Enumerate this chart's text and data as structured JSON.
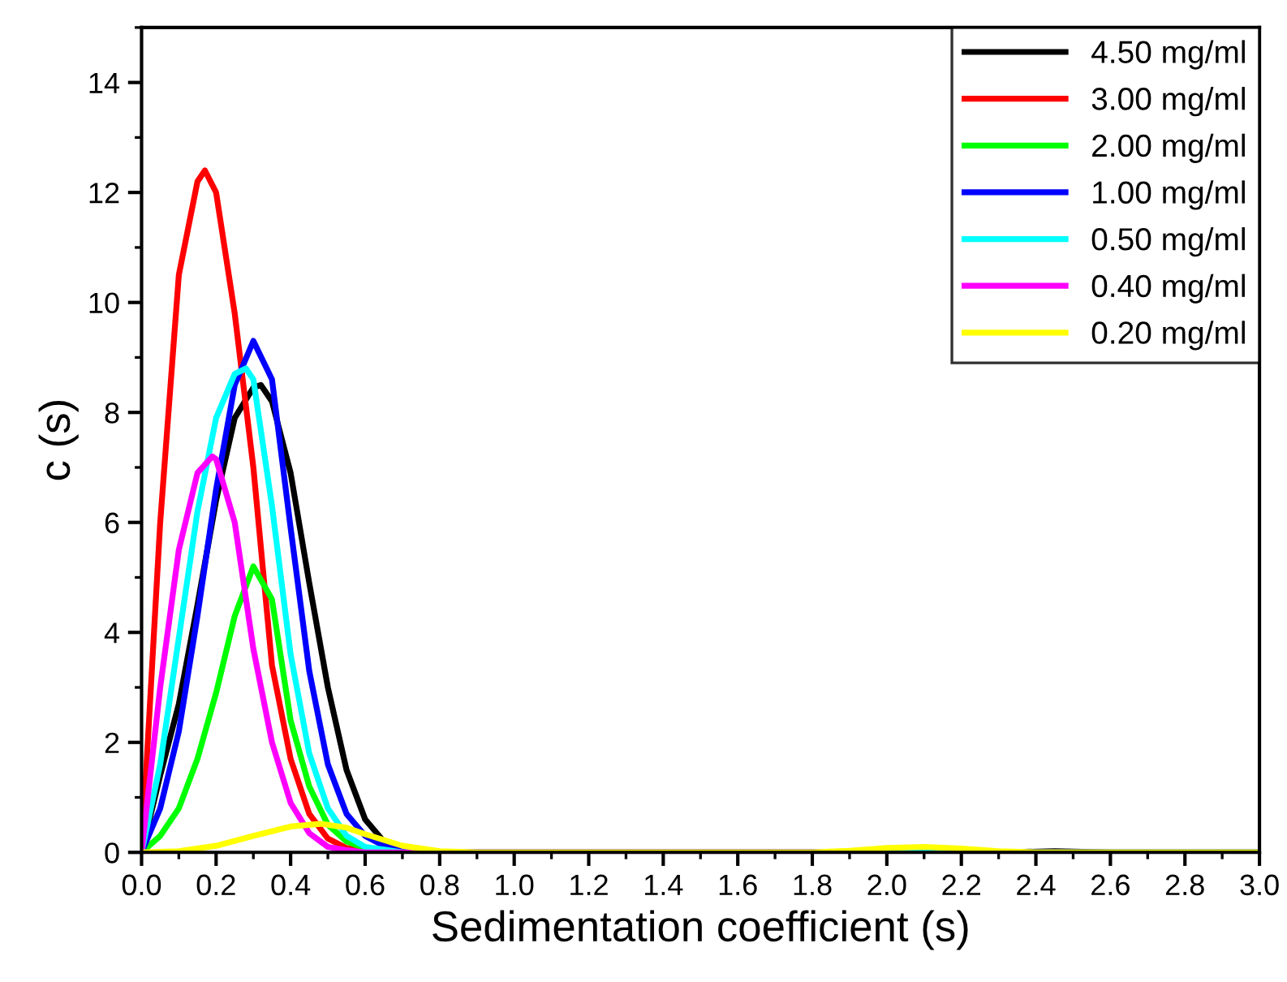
{
  "chart_data": {
    "type": "line",
    "xlabel": "Sedimentation coefficient (s)",
    "ylabel": "c (s)",
    "xlim": [
      0,
      3.0
    ],
    "ylim": [
      0,
      15
    ],
    "xticks": [
      {
        "value": 0,
        "label": "0.0"
      },
      {
        "value": 0.2,
        "label": "0.2"
      },
      {
        "value": 0.4,
        "label": "0.4"
      },
      {
        "value": 0.6,
        "label": "0.6"
      },
      {
        "value": 0.8,
        "label": "0.8"
      },
      {
        "value": 1.0,
        "label": "1.0"
      },
      {
        "value": 1.2,
        "label": "1.2"
      },
      {
        "value": 1.4,
        "label": "1.4"
      },
      {
        "value": 1.6,
        "label": "1.6"
      },
      {
        "value": 1.8,
        "label": "1.8"
      },
      {
        "value": 2.0,
        "label": "2.0"
      },
      {
        "value": 2.2,
        "label": "2.2"
      },
      {
        "value": 2.4,
        "label": "2.4"
      },
      {
        "value": 2.6,
        "label": "2.6"
      },
      {
        "value": 2.8,
        "label": "2.8"
      },
      {
        "value": 3.0,
        "label": "3.0"
      }
    ],
    "yticks": [
      0,
      2,
      4,
      6,
      8,
      10,
      12,
      14
    ],
    "grid": false,
    "legend": "top right",
    "marker": "none",
    "line_style": "solid",
    "series": [
      {
        "name": "4.50 mg/ml",
        "color": "#000000",
        "x": [
          0,
          0.05,
          0.1,
          0.15,
          0.2,
          0.25,
          0.3,
          0.32,
          0.35,
          0.4,
          0.45,
          0.5,
          0.55,
          0.6,
          0.65,
          0.7,
          0.8,
          2.3,
          2.45,
          2.6,
          3.0
        ],
        "values": [
          0,
          1.4,
          2.7,
          4.5,
          6.4,
          7.9,
          8.45,
          8.5,
          8.2,
          6.9,
          4.9,
          3.0,
          1.5,
          0.6,
          0.2,
          0.06,
          0,
          0,
          0.02,
          0,
          0
        ]
      },
      {
        "name": "3.00 mg/ml",
        "color": "#ff0000",
        "x": [
          0,
          0.05,
          0.1,
          0.15,
          0.17,
          0.2,
          0.25,
          0.3,
          0.35,
          0.4,
          0.45,
          0.5,
          0.55,
          0.6,
          0.7,
          3.0
        ],
        "values": [
          0,
          6.0,
          10.5,
          12.2,
          12.4,
          12.0,
          9.8,
          7.0,
          3.4,
          1.7,
          0.7,
          0.25,
          0.08,
          0.02,
          0,
          0
        ]
      },
      {
        "name": "2.00 mg/ml",
        "color": "#00ff00",
        "x": [
          0,
          0.05,
          0.1,
          0.15,
          0.2,
          0.25,
          0.3,
          0.35,
          0.4,
          0.45,
          0.5,
          0.55,
          0.6
        ],
        "values": [
          0,
          0.3,
          0.8,
          1.7,
          2.9,
          4.3,
          5.2,
          4.6,
          2.4,
          1.2,
          0.5,
          0.2,
          0.07
        ]
      },
      {
        "name": "1.00 mg/ml",
        "color": "#0000ff",
        "x": [
          0,
          0.05,
          0.1,
          0.15,
          0.2,
          0.25,
          0.3,
          0.35,
          0.4,
          0.45,
          0.5,
          0.55,
          0.6,
          0.65,
          0.7,
          0.8,
          3.0
        ],
        "values": [
          0,
          0.8,
          2.2,
          4.3,
          6.6,
          8.5,
          9.3,
          8.6,
          5.9,
          3.3,
          1.6,
          0.7,
          0.3,
          0.12,
          0.04,
          0,
          0
        ]
      },
      {
        "name": "0.50 mg/ml",
        "color": "#00ffff",
        "x": [
          0,
          0.05,
          0.1,
          0.15,
          0.2,
          0.25,
          0.28,
          0.3,
          0.35,
          0.4,
          0.45,
          0.5,
          0.55,
          0.6,
          0.65,
          0.7,
          3.0
        ],
        "values": [
          0,
          1.6,
          3.9,
          6.2,
          7.9,
          8.7,
          8.8,
          8.6,
          6.3,
          3.6,
          1.8,
          0.8,
          0.3,
          0.1,
          0.05,
          0,
          0
        ]
      },
      {
        "name": "0.40 mg/ml",
        "color": "#ff00ff",
        "x": [
          0,
          0.05,
          0.1,
          0.15,
          0.19,
          0.2,
          0.25,
          0.3,
          0.35,
          0.4,
          0.45,
          0.5,
          0.55,
          0.6,
          1.9
        ],
        "values": [
          0,
          3.0,
          5.5,
          6.9,
          7.2,
          7.15,
          6.0,
          3.7,
          2.0,
          0.9,
          0.35,
          0.1,
          0.04,
          0,
          0
        ]
      },
      {
        "name": "0.20 mg/ml",
        "color": "#ffff00",
        "x": [
          0,
          0.1,
          0.2,
          0.3,
          0.4,
          0.48,
          0.55,
          0.6,
          0.7,
          0.8,
          0.9,
          1.8,
          1.9,
          2.0,
          2.1,
          2.2,
          2.3,
          2.4,
          3.0
        ],
        "values": [
          0,
          0.02,
          0.12,
          0.3,
          0.47,
          0.52,
          0.45,
          0.33,
          0.12,
          0.02,
          0,
          0,
          0.03,
          0.08,
          0.1,
          0.07,
          0.02,
          0,
          0
        ]
      }
    ]
  }
}
